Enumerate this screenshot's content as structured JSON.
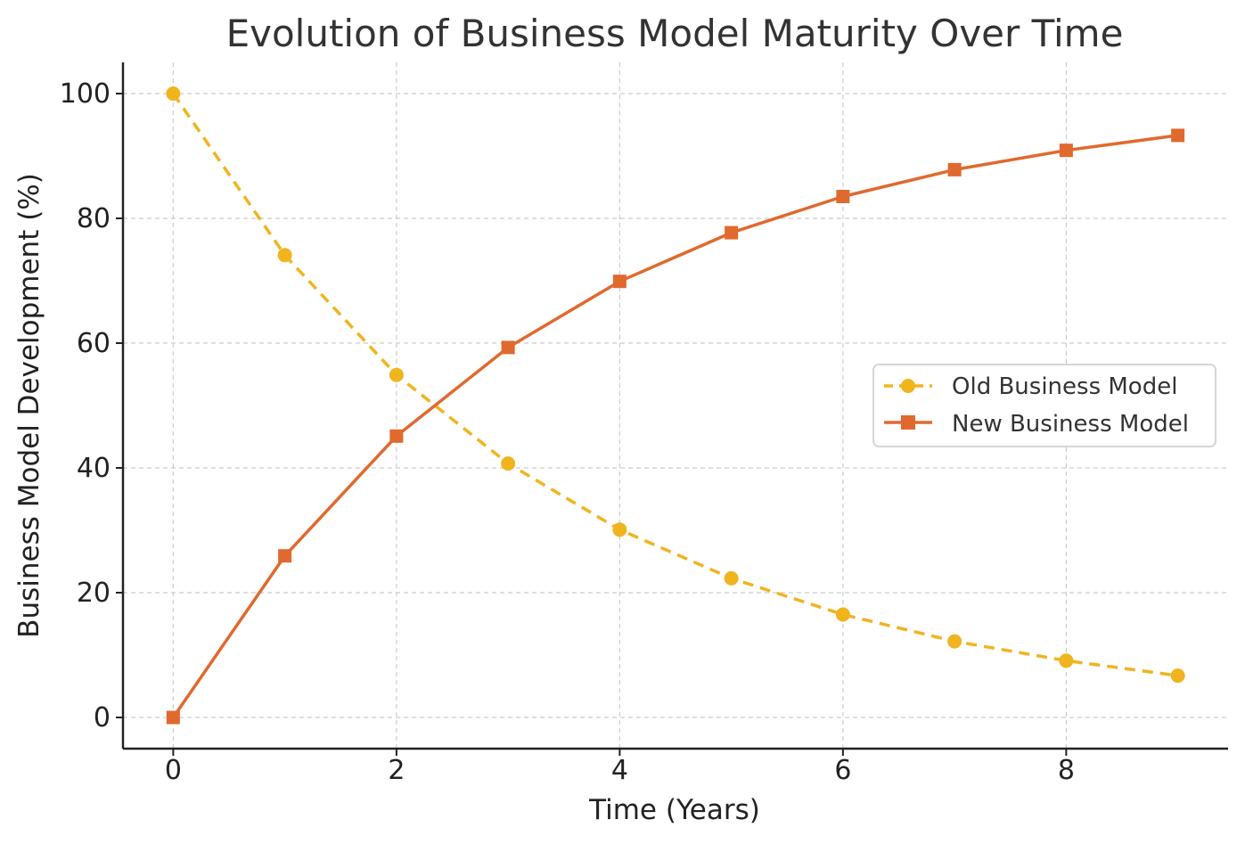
{
  "chart_data": {
    "type": "line",
    "title": "Evolution of Business Model Maturity Over Time",
    "xlabel": "Time (Years)",
    "ylabel": "Business Model Development (%)",
    "x": [
      0,
      1,
      2,
      3,
      4,
      5,
      6,
      7,
      8,
      9
    ],
    "xlim": [
      -0.45,
      9.45
    ],
    "ylim": [
      -5,
      105
    ],
    "xticks": [
      0,
      2,
      4,
      6,
      8
    ],
    "yticks": [
      0,
      20,
      40,
      60,
      80,
      100
    ],
    "xtick_labels": [
      "0",
      "2",
      "4",
      "6",
      "8"
    ],
    "ytick_labels": [
      "0",
      "20",
      "40",
      "60",
      "80",
      "100"
    ],
    "grid": true,
    "legend_position": "center-right",
    "series": [
      {
        "name": "Old Business Model",
        "values": [
          100,
          74.1,
          54.9,
          40.7,
          30.1,
          22.3,
          16.5,
          12.2,
          9.1,
          6.7
        ],
        "color": "#F0B41E",
        "style": "dashed",
        "marker": "circle"
      },
      {
        "name": "New Business Model",
        "values": [
          0,
          25.9,
          45.1,
          59.3,
          69.9,
          77.7,
          83.5,
          87.8,
          90.9,
          93.3
        ],
        "color": "#E0692E",
        "style": "solid",
        "marker": "square"
      }
    ]
  }
}
